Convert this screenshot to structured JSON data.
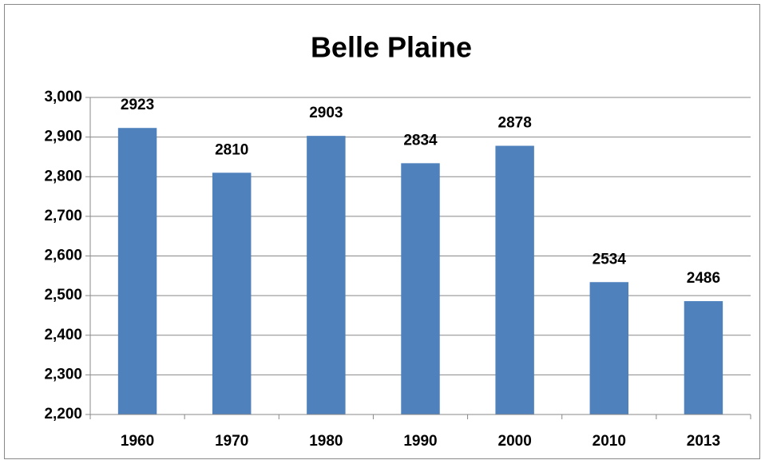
{
  "chart_data": {
    "type": "bar",
    "title": "Belle Plaine",
    "categories": [
      "1960",
      "1970",
      "1980",
      "1990",
      "2000",
      "2010",
      "2013"
    ],
    "values": [
      2923,
      2810,
      2903,
      2834,
      2878,
      2534,
      2486
    ],
    "color": "#4f81bd",
    "ylim": [
      2200,
      3000
    ],
    "yticks": [
      {
        "value": 2200,
        "label": "2,200"
      },
      {
        "value": 2300,
        "label": "2,300"
      },
      {
        "value": 2400,
        "label": "2,400"
      },
      {
        "value": 2500,
        "label": "2,500"
      },
      {
        "value": 2600,
        "label": "2,600"
      },
      {
        "value": 2700,
        "label": "2,700"
      },
      {
        "value": 2800,
        "label": "2,800"
      },
      {
        "value": 2900,
        "label": "2,900"
      },
      {
        "value": 3000,
        "label": "3,000"
      }
    ],
    "grid": true
  }
}
